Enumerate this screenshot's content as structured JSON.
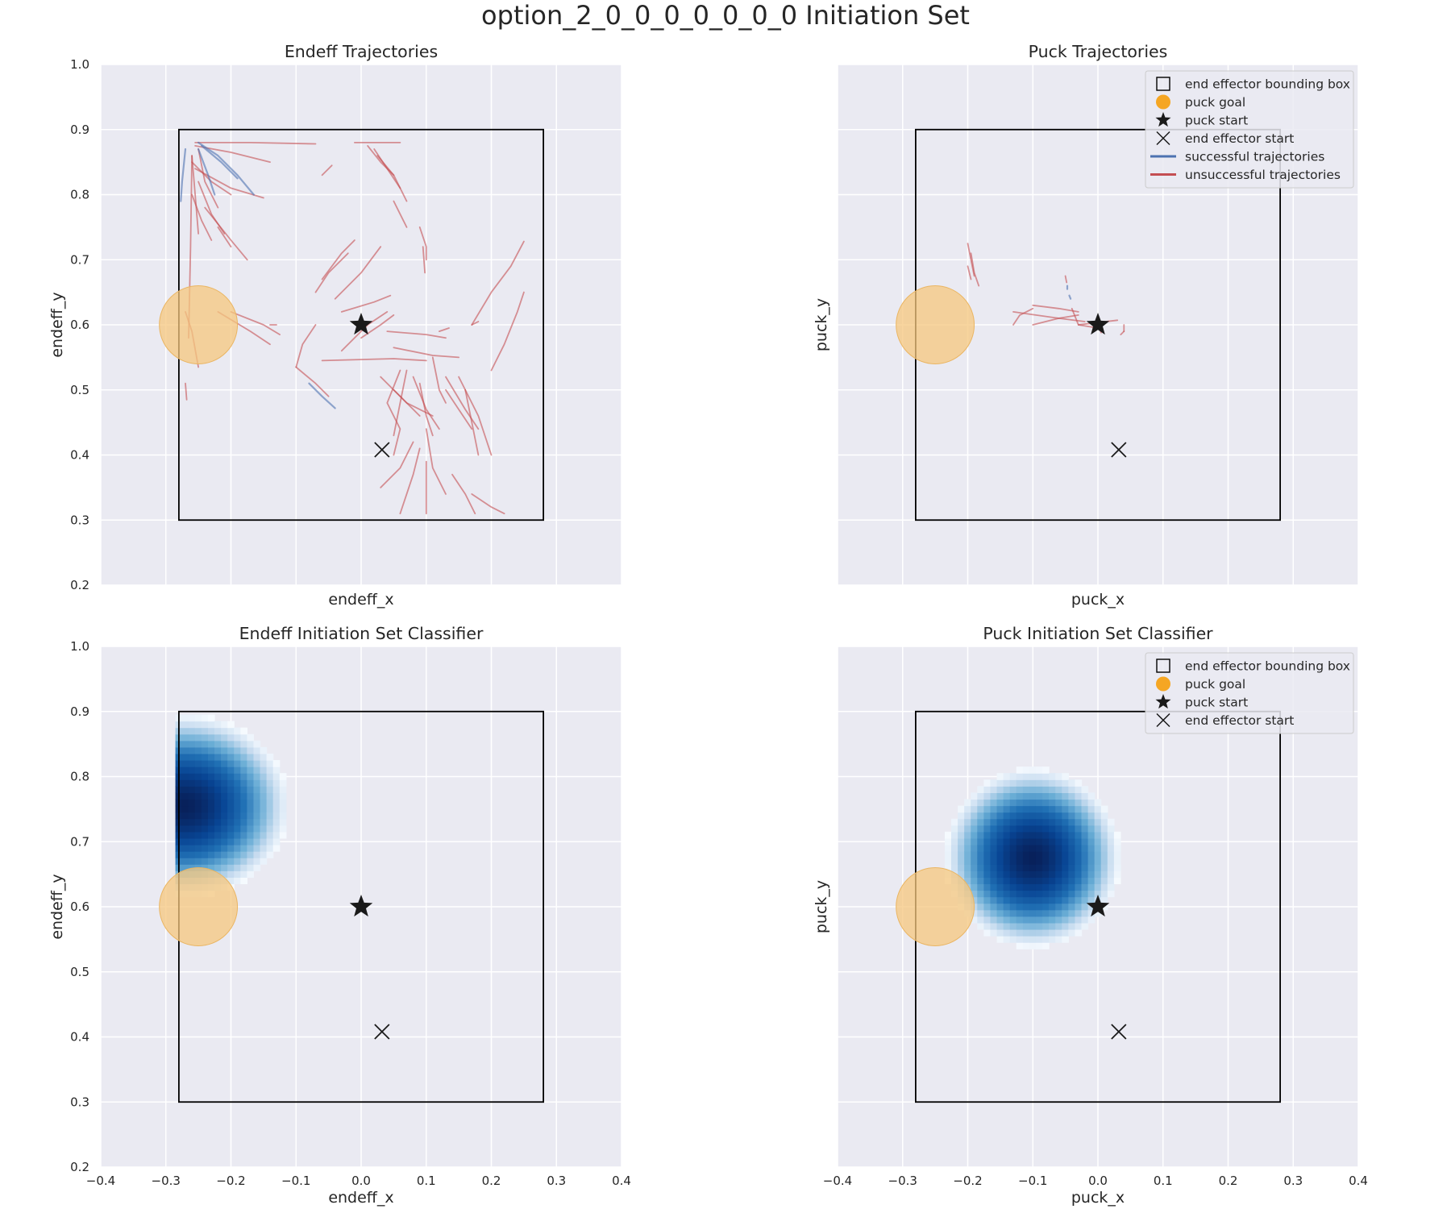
{
  "title": "option_2_0_0_0_0_0_0_0 Initiation Set",
  "colors": {
    "background": "#eaeaf2",
    "grid": "#ffffff",
    "success": "#4c72b0",
    "failure": "#c44e52",
    "goal": "#f5c77e",
    "marker": "#1a1a1a",
    "box": "#000000"
  },
  "legend_labels": {
    "bbox": "end effector bounding box",
    "goal": "puck goal",
    "puck_start": "puck start",
    "ee_start": "end effector start",
    "success": "successful trajectories",
    "failure": "unsuccessful trajectories"
  },
  "chart_data": [
    {
      "id": "tl",
      "type": "line",
      "title": "Endeff Trajectories",
      "xlabel": "endeff_x",
      "ylabel": "endeff_y",
      "xlim": [
        -0.4,
        0.4
      ],
      "ylim": [
        0.2,
        1.0
      ],
      "xticks": [],
      "yticks": [
        "0.2",
        "0.3",
        "0.4",
        "0.5",
        "0.6",
        "0.7",
        "0.8",
        "0.9",
        "1.0"
      ],
      "grid": true,
      "legend": "",
      "bounding_box": [
        -0.28,
        0.3,
        0.28,
        0.9
      ],
      "puck_goal": {
        "x": -0.25,
        "y": 0.6,
        "r": 0.06
      },
      "puck_start": {
        "x": 0.0,
        "y": 0.6
      },
      "endeff_start": {
        "x": 0.032,
        "y": 0.408
      },
      "success_trajectories": [
        [
          [
            -0.25,
            0.88
          ],
          [
            -0.22,
            0.86
          ],
          [
            -0.19,
            0.83
          ],
          [
            -0.165,
            0.8
          ]
        ],
        [
          [
            -0.245,
            0.875
          ],
          [
            -0.215,
            0.85
          ],
          [
            -0.19,
            0.825
          ]
        ],
        [
          [
            -0.27,
            0.87
          ],
          [
            -0.275,
            0.82
          ],
          [
            -0.277,
            0.79
          ]
        ],
        [
          [
            -0.25,
            0.87
          ],
          [
            -0.235,
            0.83
          ],
          [
            -0.225,
            0.8
          ]
        ],
        [
          [
            -0.08,
            0.51
          ],
          [
            -0.06,
            0.49
          ],
          [
            -0.04,
            0.472
          ]
        ]
      ],
      "failure_trajectories": [
        [
          [
            -0.255,
            0.88
          ],
          [
            -0.17,
            0.88
          ],
          [
            -0.07,
            0.878
          ]
        ],
        [
          [
            -0.255,
            0.875
          ],
          [
            -0.2,
            0.865
          ],
          [
            -0.14,
            0.85
          ]
        ],
        [
          [
            -0.25,
            0.87
          ],
          [
            -0.24,
            0.82
          ],
          [
            -0.22,
            0.78
          ]
        ],
        [
          [
            -0.26,
            0.86
          ],
          [
            -0.255,
            0.8
          ],
          [
            -0.25,
            0.74
          ]
        ],
        [
          [
            -0.26,
            0.86
          ],
          [
            -0.262,
            0.72
          ],
          [
            -0.265,
            0.58
          ]
        ],
        [
          [
            -0.26,
            0.85
          ],
          [
            -0.23,
            0.82
          ],
          [
            -0.2,
            0.8
          ]
        ],
        [
          [
            -0.255,
            0.84
          ],
          [
            -0.2,
            0.81
          ],
          [
            -0.15,
            0.795
          ]
        ],
        [
          [
            -0.25,
            0.82
          ],
          [
            -0.23,
            0.77
          ],
          [
            -0.21,
            0.74
          ]
        ],
        [
          [
            -0.26,
            0.8
          ],
          [
            -0.245,
            0.76
          ],
          [
            -0.23,
            0.73
          ]
        ],
        [
          [
            -0.24,
            0.78
          ],
          [
            -0.2,
            0.73
          ],
          [
            -0.175,
            0.7
          ]
        ],
        [
          [
            -0.22,
            0.75
          ],
          [
            -0.2,
            0.72
          ]
        ],
        [
          [
            -0.27,
            0.62
          ],
          [
            -0.26,
            0.59
          ],
          [
            -0.25,
            0.535
          ]
        ],
        [
          [
            -0.22,
            0.62
          ],
          [
            -0.17,
            0.59
          ],
          [
            -0.14,
            0.57
          ]
        ],
        [
          [
            -0.2,
            0.62
          ],
          [
            -0.15,
            0.6
          ],
          [
            -0.125,
            0.585
          ]
        ],
        [
          [
            -0.27,
            0.51
          ],
          [
            -0.268,
            0.485
          ]
        ],
        [
          [
            -0.14,
            0.6
          ],
          [
            -0.13,
            0.6
          ]
        ],
        [
          [
            -0.06,
            0.83
          ],
          [
            -0.045,
            0.845
          ]
        ],
        [
          [
            -0.01,
            0.88
          ],
          [
            0.03,
            0.88
          ],
          [
            0.06,
            0.88
          ]
        ],
        [
          [
            0.01,
            0.875
          ],
          [
            0.03,
            0.85
          ],
          [
            0.05,
            0.83
          ]
        ],
        [
          [
            0.02,
            0.87
          ],
          [
            0.04,
            0.84
          ],
          [
            0.06,
            0.81
          ]
        ],
        [
          [
            0.025,
            0.86
          ],
          [
            0.05,
            0.83
          ],
          [
            0.07,
            0.79
          ]
        ],
        [
          [
            0.05,
            0.79
          ],
          [
            0.06,
            0.77
          ],
          [
            0.07,
            0.75
          ]
        ],
        [
          [
            0.09,
            0.75
          ],
          [
            0.1,
            0.72
          ],
          [
            0.1,
            0.7
          ]
        ],
        [
          [
            0.095,
            0.72
          ],
          [
            0.098,
            0.68
          ]
        ],
        [
          [
            -0.07,
            0.65
          ],
          [
            -0.05,
            0.68
          ],
          [
            -0.02,
            0.71
          ]
        ],
        [
          [
            -0.06,
            0.67
          ],
          [
            -0.03,
            0.71
          ],
          [
            -0.01,
            0.73
          ]
        ],
        [
          [
            -0.04,
            0.64
          ],
          [
            0.0,
            0.68
          ],
          [
            0.03,
            0.72
          ]
        ],
        [
          [
            -0.03,
            0.62
          ],
          [
            0.02,
            0.635
          ],
          [
            0.045,
            0.645
          ]
        ],
        [
          [
            -0.03,
            0.56
          ],
          [
            0.01,
            0.6
          ],
          [
            0.04,
            0.62
          ]
        ],
        [
          [
            0.0,
            0.58
          ],
          [
            0.03,
            0.6
          ],
          [
            0.05,
            0.615
          ]
        ],
        [
          [
            -0.07,
            0.6
          ],
          [
            -0.09,
            0.57
          ],
          [
            -0.1,
            0.535
          ]
        ],
        [
          [
            -0.1,
            0.535
          ],
          [
            -0.07,
            0.51
          ],
          [
            -0.05,
            0.49
          ]
        ],
        [
          [
            -0.06,
            0.545
          ],
          [
            0.05,
            0.548
          ],
          [
            0.1,
            0.545
          ]
        ],
        [
          [
            0.05,
            0.565
          ],
          [
            0.11,
            0.553
          ],
          [
            0.15,
            0.55
          ]
        ],
        [
          [
            0.04,
            0.59
          ],
          [
            0.1,
            0.585
          ],
          [
            0.13,
            0.58
          ]
        ],
        [
          [
            0.12,
            0.59
          ],
          [
            0.135,
            0.595
          ]
        ],
        [
          [
            0.17,
            0.6
          ],
          [
            0.18,
            0.605
          ]
        ],
        [
          [
            0.17,
            0.6
          ],
          [
            0.2,
            0.65
          ],
          [
            0.23,
            0.69
          ],
          [
            0.25,
            0.728
          ]
        ],
        [
          [
            0.2,
            0.53
          ],
          [
            0.22,
            0.57
          ],
          [
            0.24,
            0.62
          ],
          [
            0.25,
            0.65
          ]
        ],
        [
          [
            0.03,
            0.52
          ],
          [
            0.06,
            0.49
          ],
          [
            0.09,
            0.46
          ]
        ],
        [
          [
            0.05,
            0.5
          ],
          [
            0.07,
            0.48
          ],
          [
            0.11,
            0.46
          ]
        ],
        [
          [
            0.06,
            0.53
          ],
          [
            0.04,
            0.48
          ],
          [
            0.06,
            0.44
          ],
          [
            0.05,
            0.4
          ]
        ],
        [
          [
            0.07,
            0.53
          ],
          [
            0.06,
            0.48
          ],
          [
            0.05,
            0.43
          ]
        ],
        [
          [
            0.08,
            0.52
          ],
          [
            0.1,
            0.47
          ],
          [
            0.12,
            0.44
          ]
        ],
        [
          [
            0.09,
            0.51
          ],
          [
            0.1,
            0.46
          ],
          [
            0.11,
            0.43
          ]
        ],
        [
          [
            0.11,
            0.55
          ],
          [
            0.12,
            0.5
          ],
          [
            0.13,
            0.48
          ]
        ],
        [
          [
            0.13,
            0.52
          ],
          [
            0.16,
            0.47
          ],
          [
            0.18,
            0.44
          ]
        ],
        [
          [
            0.15,
            0.52
          ],
          [
            0.18,
            0.46
          ],
          [
            0.2,
            0.4
          ]
        ],
        [
          [
            0.14,
            0.37
          ],
          [
            0.16,
            0.34
          ],
          [
            0.175,
            0.31
          ]
        ],
        [
          [
            0.17,
            0.34
          ],
          [
            0.2,
            0.32
          ],
          [
            0.22,
            0.31
          ]
        ],
        [
          [
            0.1,
            0.39
          ],
          [
            0.1,
            0.35
          ],
          [
            0.1,
            0.31
          ]
        ],
        [
          [
            0.03,
            0.35
          ],
          [
            0.06,
            0.38
          ],
          [
            0.08,
            0.42
          ]
        ],
        [
          [
            0.06,
            0.31
          ],
          [
            0.08,
            0.37
          ],
          [
            0.09,
            0.41
          ]
        ],
        [
          [
            0.1,
            0.44
          ],
          [
            0.11,
            0.38
          ],
          [
            0.13,
            0.34
          ]
        ],
        [
          [
            0.13,
            0.5
          ],
          [
            0.15,
            0.47
          ],
          [
            0.17,
            0.44
          ]
        ],
        [
          [
            0.16,
            0.5
          ],
          [
            0.17,
            0.45
          ],
          [
            0.18,
            0.4
          ]
        ]
      ]
    },
    {
      "id": "tr",
      "type": "line",
      "title": "Puck Trajectories",
      "xlabel": "puck_x",
      "ylabel": "puck_y",
      "xlim": [
        -0.4,
        0.4
      ],
      "ylim": [
        0.2,
        1.0
      ],
      "xticks": [],
      "yticks": [],
      "grid": true,
      "legend": "top-right",
      "bounding_box": [
        -0.28,
        0.3,
        0.28,
        0.9
      ],
      "puck_goal": {
        "x": -0.25,
        "y": 0.6,
        "r": 0.06
      },
      "puck_start": {
        "x": 0.0,
        "y": 0.6
      },
      "endeff_start": {
        "x": 0.032,
        "y": 0.408
      },
      "success_trajectories": [
        [
          [
            -0.047,
            0.66
          ],
          [
            -0.047,
            0.655
          ]
        ],
        [
          [
            -0.044,
            0.645
          ],
          [
            -0.042,
            0.64
          ]
        ]
      ],
      "failure_trajectories": [
        [
          [
            -0.2,
            0.725
          ],
          [
            -0.195,
            0.7
          ],
          [
            -0.19,
            0.675
          ]
        ],
        [
          [
            -0.195,
            0.71
          ],
          [
            -0.19,
            0.68
          ],
          [
            -0.183,
            0.66
          ]
        ],
        [
          [
            -0.2,
            0.69
          ],
          [
            -0.195,
            0.67
          ]
        ],
        [
          [
            -0.13,
            0.62
          ],
          [
            -0.06,
            0.61
          ],
          [
            -0.02,
            0.605
          ]
        ],
        [
          [
            -0.1,
            0.63
          ],
          [
            -0.06,
            0.625
          ],
          [
            -0.03,
            0.62
          ]
        ],
        [
          [
            -0.1,
            0.6
          ],
          [
            -0.06,
            0.61
          ],
          [
            -0.03,
            0.615
          ]
        ],
        [
          [
            -0.13,
            0.6
          ],
          [
            -0.12,
            0.615
          ],
          [
            -0.1,
            0.625
          ]
        ],
        [
          [
            -0.04,
            0.625
          ],
          [
            -0.03,
            0.6
          ],
          [
            0.0,
            0.595
          ]
        ],
        [
          [
            -0.03,
            0.6
          ],
          [
            0.03,
            0.607
          ]
        ],
        [
          [
            0.04,
            0.59
          ],
          [
            0.04,
            0.6
          ]
        ],
        [
          [
            -0.05,
            0.675
          ],
          [
            -0.048,
            0.665
          ]
        ],
        [
          [
            0.0,
            0.6
          ],
          [
            0.005,
            0.588
          ]
        ],
        [
          [
            0.04,
            0.59
          ],
          [
            0.035,
            0.585
          ]
        ]
      ]
    },
    {
      "id": "bl",
      "type": "heatmap",
      "title": "Endeff Initiation Set Classifier",
      "xlabel": "endeff_x",
      "ylabel": "endeff_y",
      "xlim": [
        -0.4,
        0.4
      ],
      "ylim": [
        0.2,
        1.0
      ],
      "xticks": [
        "−0.4",
        "−0.3",
        "−0.2",
        "−0.1",
        "0.0",
        "0.1",
        "0.2",
        "0.3",
        "0.4"
      ],
      "yticks": [
        "0.2",
        "0.3",
        "0.4",
        "0.5",
        "0.6",
        "0.7",
        "0.8",
        "0.9",
        "1.0"
      ],
      "grid": true,
      "legend": "",
      "bounding_box": [
        -0.28,
        0.3,
        0.28,
        0.9
      ],
      "puck_goal": {
        "x": -0.25,
        "y": 0.6,
        "r": 0.06
      },
      "puck_start": {
        "x": 0.0,
        "y": 0.6
      },
      "endeff_start": {
        "x": 0.032,
        "y": 0.408
      },
      "heatmap": {
        "center": [
          -0.27,
          0.755
        ],
        "radius_x": 0.16,
        "radius_y": 0.14,
        "x_range": [
          -0.28,
          0.28
        ],
        "y_range": [
          0.3,
          0.9
        ],
        "step": 0.01
      }
    },
    {
      "id": "br",
      "type": "heatmap",
      "title": "Puck Initiation Set Classifier",
      "xlabel": "puck_x",
      "ylabel": "puck_y",
      "xlim": [
        -0.4,
        0.4
      ],
      "ylim": [
        0.2,
        1.0
      ],
      "xticks": [
        "−0.4",
        "−0.3",
        "−0.2",
        "−0.1",
        "0.0",
        "0.1",
        "0.2",
        "0.3",
        "0.4"
      ],
      "yticks": [],
      "grid": true,
      "legend": "top-right",
      "bounding_box": [
        -0.28,
        0.3,
        0.28,
        0.9
      ],
      "puck_goal": {
        "x": -0.25,
        "y": 0.6,
        "r": 0.06
      },
      "puck_start": {
        "x": 0.0,
        "y": 0.6
      },
      "endeff_start": {
        "x": 0.032,
        "y": 0.408
      },
      "heatmap": {
        "center": [
          -0.1,
          0.675
        ],
        "radius_x": 0.135,
        "radius_y": 0.138,
        "x_range": [
          -0.28,
          0.28
        ],
        "y_range": [
          0.3,
          0.9
        ],
        "step": 0.01
      }
    }
  ]
}
